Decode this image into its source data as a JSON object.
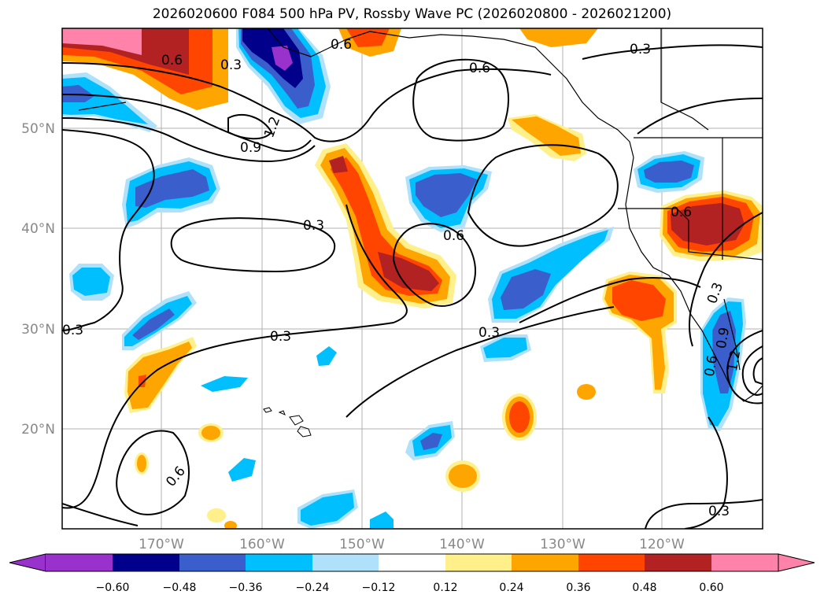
{
  "title": "2026020600 F084 500 hPa PV, Rossby Wave PC (2026020800 - 2026021200)",
  "colors": {
    "land_line": "#000000",
    "grid": "#b0b0b0",
    "levels": [
      "#9932cc",
      "#00008b",
      "#3a5fcd",
      "#00bfff",
      "#afe2fa",
      "#ffffff",
      "#fff08c",
      "#ffa500",
      "#ff4500",
      "#b22222",
      "#ff82ab"
    ]
  },
  "lat_labels": [
    "50°N",
    "40°N",
    "30°N",
    "20°N"
  ],
  "lon_labels": [
    "170°W",
    "160°W",
    "150°W",
    "140°W",
    "130°W",
    "120°W"
  ],
  "colorbar_ticks": [
    "−0.60",
    "−0.48",
    "−0.36",
    "−0.24",
    "−0.12",
    "0.12",
    "0.24",
    "0.36",
    "0.48",
    "0.60"
  ],
  "contour_labels": [
    "0.6",
    "0.3",
    "0.6",
    "1.2",
    "0.9",
    "0.3",
    "0.6",
    "0.6",
    "0.3",
    "0.3",
    "0.3",
    "0.3",
    "0.6",
    "0.3",
    "0.6",
    "0.6",
    "0.9",
    "1.2",
    "0.3"
  ]
}
